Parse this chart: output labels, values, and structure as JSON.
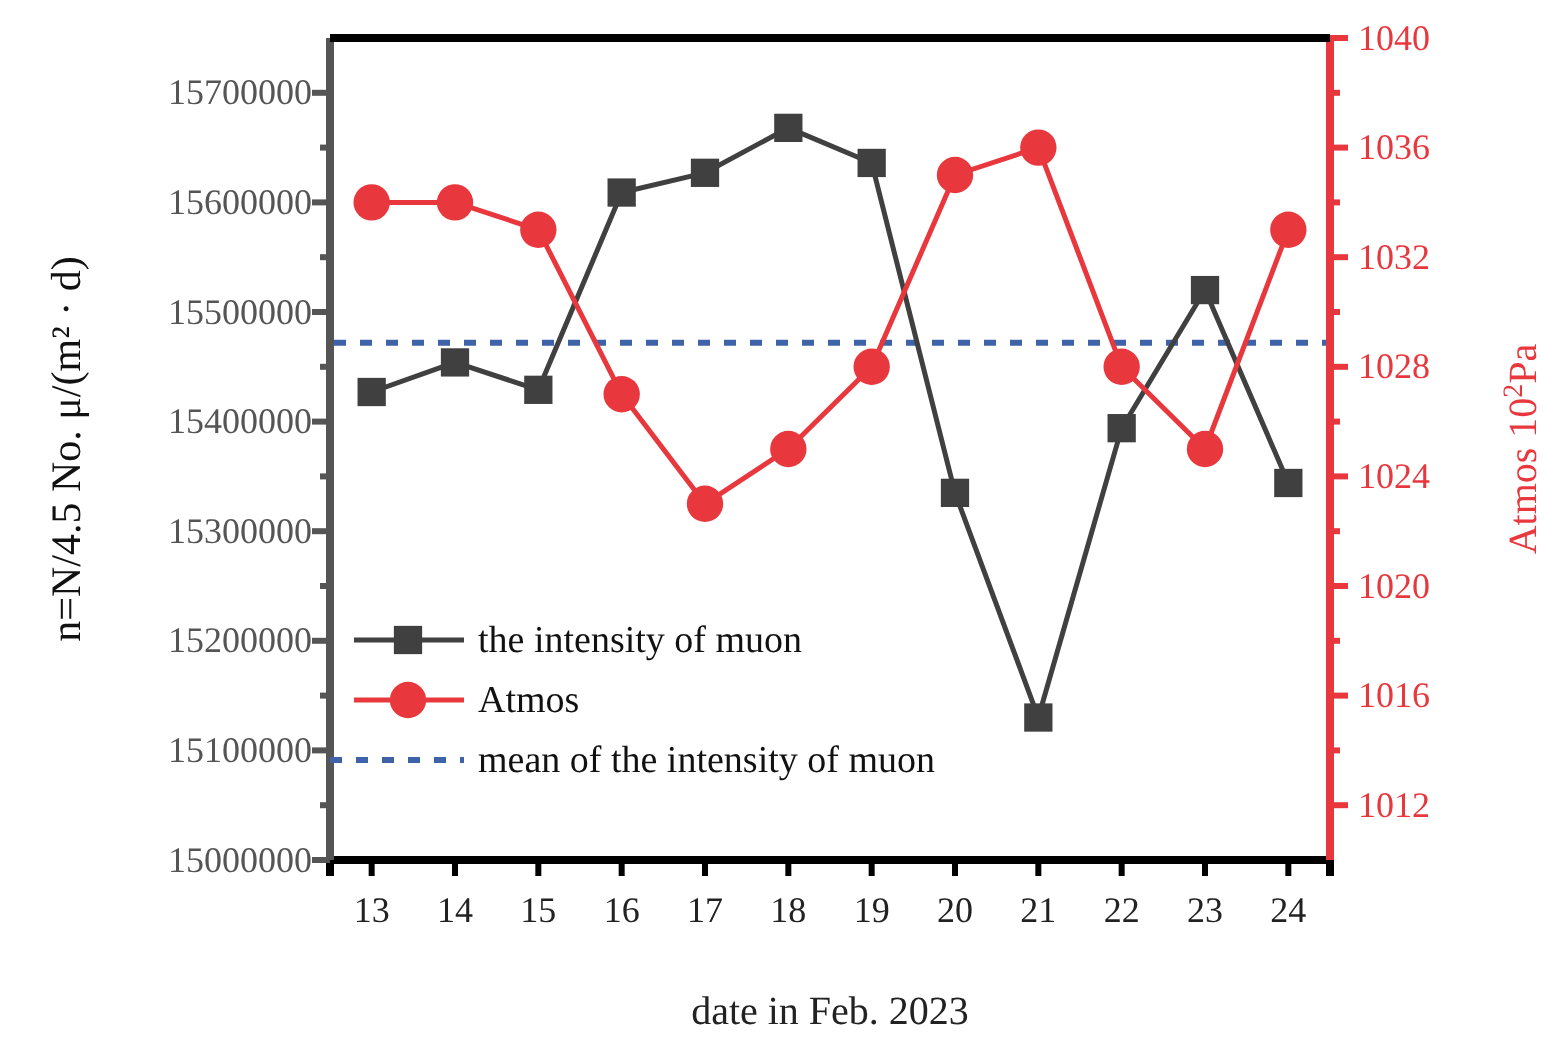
{
  "chart_data": {
    "type": "line",
    "xlabel": "date in Feb. 2023",
    "ylabel": "n=N/4.5 No. μ/(m² · d)",
    "y2label": "Atmos 10$^{2}$Pa",
    "categories": [
      "13",
      "14",
      "15",
      "16",
      "17",
      "18",
      "19",
      "20",
      "21",
      "22",
      "23",
      "24"
    ],
    "series": [
      {
        "name": "the intensity of muon",
        "color": "#404040",
        "marker": "square",
        "values": [
          15427000,
          15454000,
          15429000,
          15609000,
          15627000,
          15668000,
          15636000,
          15335000,
          15130000,
          15394000,
          15520000,
          15344000
        ]
      },
      {
        "name": "Atmos",
        "color": "#e8383d",
        "marker": "circle",
        "axis": "y2",
        "values": [
          1034,
          1034,
          1033,
          1027,
          1023,
          1025,
          1028,
          1035,
          1036,
          1028,
          1025,
          1033
        ]
      }
    ],
    "ylim": [
      15000000,
      15750000
    ],
    "yticks": [
      15000000,
      {
        "value": 15050000,
        "label": null
      },
      15100000,
      {
        "value": 15150000,
        "label": null
      },
      15200000,
      {
        "value": 15250000,
        "label": null
      },
      15300000,
      {
        "value": 15350000,
        "label": null
      },
      15400000,
      {
        "value": 15450000,
        "label": null
      },
      15500000,
      {
        "value": 15550000,
        "label": null
      },
      15600000,
      {
        "value": 15650000,
        "label": null
      },
      15700000
    ],
    "y2lim": [
      1010,
      1040
    ],
    "y2ticks": [
      1012,
      {
        "value": 1014,
        "label": null
      },
      1016,
      {
        "value": 1018,
        "label": null
      },
      1020,
      {
        "value": 1022,
        "label": null
      },
      1024,
      {
        "value": 1026,
        "label": null
      },
      1028,
      {
        "value": 1030,
        "label": null
      },
      1032,
      {
        "value": 1034,
        "label": null
      },
      1036,
      {
        "value": 1038,
        "label": null
      },
      1040
    ],
    "ref_lines": [
      {
        "axis": "y",
        "value": 15472000,
        "label": "mean of the intensity of muon",
        "color": "#3f63a8",
        "line_style": "dashed"
      }
    ],
    "legend": "bottom left",
    "grid": false,
    "line_style": "solid"
  }
}
